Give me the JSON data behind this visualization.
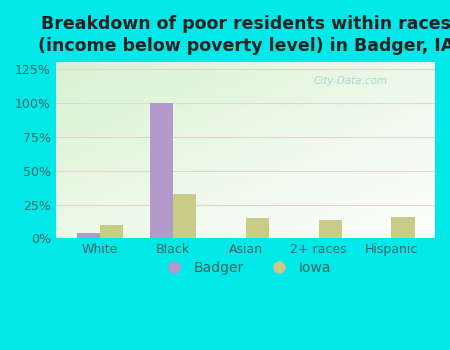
{
  "title": "Breakdown of poor residents within races\n(income below poverty level) in Badger, IA",
  "categories": [
    "White",
    "Black",
    "Asian",
    "2+ races",
    "Hispanic"
  ],
  "badger_values": [
    4,
    100,
    0,
    0,
    0
  ],
  "iowa_values": [
    10,
    33,
    15,
    14,
    16
  ],
  "badger_color": "#b399cc",
  "iowa_color": "#c8cc88",
  "background_outer": "#00e8e8",
  "ylim": [
    0,
    130
  ],
  "yticks": [
    0,
    25,
    50,
    75,
    100,
    125
  ],
  "ytick_labels": [
    "0%",
    "25%",
    "50%",
    "75%",
    "100%",
    "125%"
  ],
  "bar_width": 0.32,
  "title_fontsize": 12.5,
  "legend_labels": [
    "Badger",
    "Iowa"
  ],
  "tick_label_color": "#336666",
  "grid_color": "#dddddd",
  "watermark": "City-Data.com"
}
